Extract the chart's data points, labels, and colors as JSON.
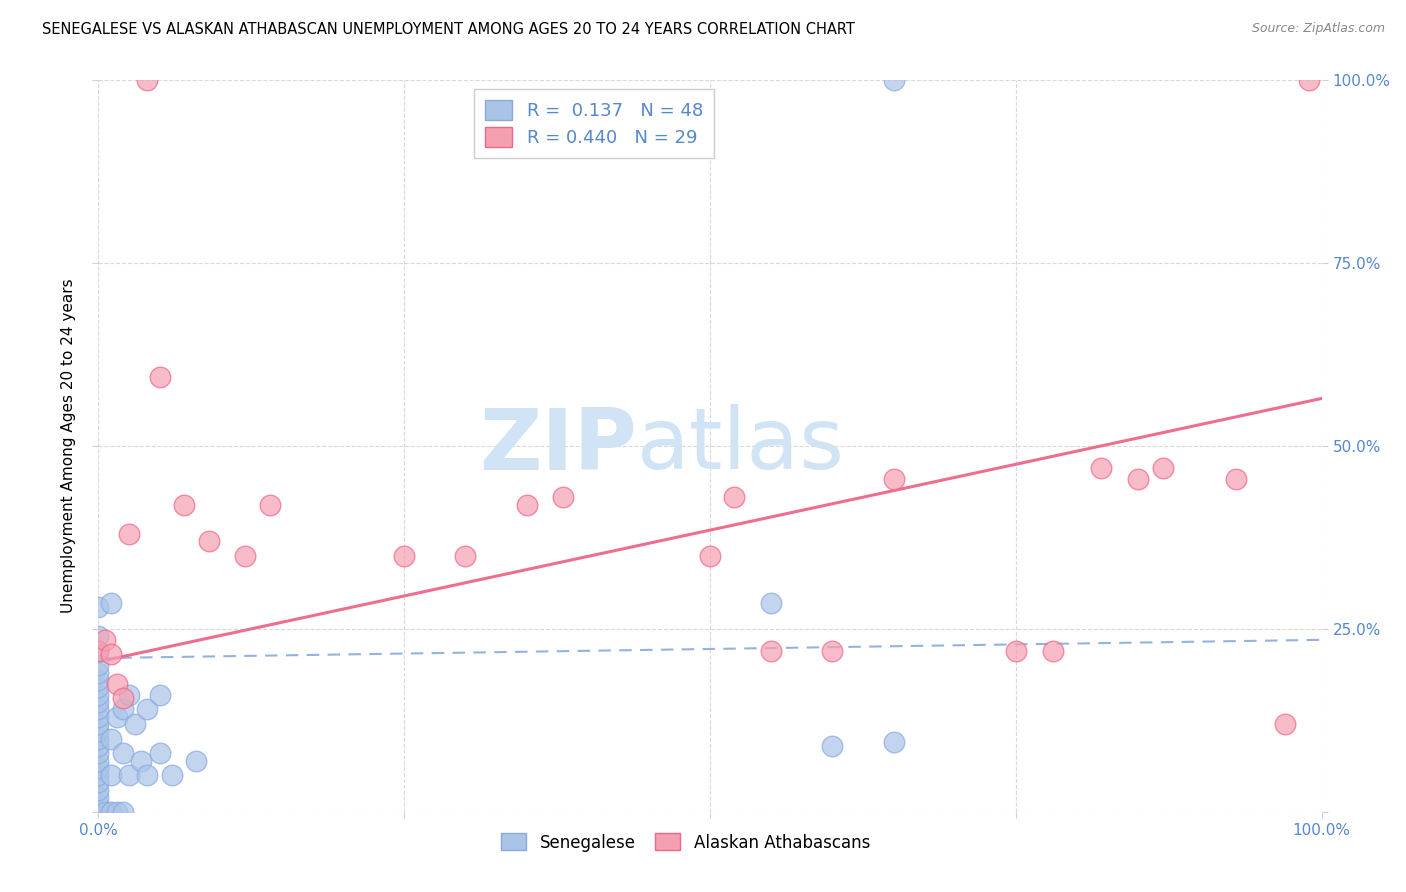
{
  "title": "SENEGALESE VS ALASKAN ATHABASCAN UNEMPLOYMENT AMONG AGES 20 TO 24 YEARS CORRELATION CHART",
  "source": "Source: ZipAtlas.com",
  "ylabel": "Unemployment Among Ages 20 to 24 years",
  "xlim": [
    0,
    1
  ],
  "ylim": [
    0,
    1
  ],
  "xticks": [
    0.0,
    0.25,
    0.5,
    0.75,
    1.0
  ],
  "yticks": [
    0.0,
    0.25,
    0.5,
    0.75,
    1.0
  ],
  "xticklabels_left": [
    "0.0%",
    "",
    "",
    "",
    "100.0%"
  ],
  "yticklabels_right": [
    "",
    "25.0%",
    "50.0%",
    "75.0%",
    "100.0%"
  ],
  "legend_labels": [
    "Senegalese",
    "Alaskan Athabascans"
  ],
  "senegalese_color": "#aac4e8",
  "athabascan_color": "#f5a0b0",
  "senegalese_R": 0.137,
  "senegalese_N": 48,
  "athabascan_R": 0.44,
  "athabascan_N": 29,
  "watermark_zip": "ZIP",
  "watermark_atlas": "atlas",
  "background_color": "#ffffff",
  "grid_color": "#d0d0d0",
  "title_fontsize": 10.5,
  "axis_label_fontsize": 11,
  "tick_fontsize": 11,
  "tick_color": "#5588cc",
  "senegalese_line_color": "#88aadd",
  "athabascan_line_color": "#ee6688",
  "senegalese_scatter": [
    [
      0.0,
      0.0
    ],
    [
      0.0,
      0.01
    ],
    [
      0.0,
      0.02
    ],
    [
      0.0,
      0.03
    ],
    [
      0.0,
      0.04
    ],
    [
      0.0,
      0.05
    ],
    [
      0.0,
      0.06
    ],
    [
      0.0,
      0.07
    ],
    [
      0.0,
      0.08
    ],
    [
      0.0,
      0.09
    ],
    [
      0.0,
      0.1
    ],
    [
      0.0,
      0.11
    ],
    [
      0.0,
      0.12
    ],
    [
      0.0,
      0.13
    ],
    [
      0.0,
      0.14
    ],
    [
      0.0,
      0.15
    ],
    [
      0.0,
      0.16
    ],
    [
      0.0,
      0.17
    ],
    [
      0.0,
      0.18
    ],
    [
      0.0,
      0.19
    ],
    [
      0.0,
      0.2
    ],
    [
      0.0,
      0.22
    ],
    [
      0.0,
      0.24
    ],
    [
      0.0,
      0.28
    ],
    [
      0.005,
      0.0
    ],
    [
      0.01,
      0.0
    ],
    [
      0.015,
      0.0
    ],
    [
      0.02,
      0.0
    ],
    [
      0.01,
      0.05
    ],
    [
      0.01,
      0.1
    ],
    [
      0.015,
      0.13
    ],
    [
      0.02,
      0.08
    ],
    [
      0.02,
      0.14
    ],
    [
      0.025,
      0.05
    ],
    [
      0.025,
      0.16
    ],
    [
      0.03,
      0.12
    ],
    [
      0.035,
      0.07
    ],
    [
      0.04,
      0.05
    ],
    [
      0.04,
      0.14
    ],
    [
      0.05,
      0.08
    ],
    [
      0.05,
      0.16
    ],
    [
      0.06,
      0.05
    ],
    [
      0.08,
      0.07
    ],
    [
      0.01,
      0.285
    ],
    [
      0.55,
      0.285
    ],
    [
      0.6,
      0.09
    ],
    [
      0.65,
      1.0
    ],
    [
      0.65,
      0.095
    ]
  ],
  "athabascan_scatter": [
    [
      0.0,
      0.22
    ],
    [
      0.005,
      0.235
    ],
    [
      0.01,
      0.215
    ],
    [
      0.015,
      0.175
    ],
    [
      0.02,
      0.155
    ],
    [
      0.025,
      0.38
    ],
    [
      0.04,
      1.0
    ],
    [
      0.05,
      0.595
    ],
    [
      0.07,
      0.42
    ],
    [
      0.09,
      0.37
    ],
    [
      0.12,
      0.35
    ],
    [
      0.14,
      0.42
    ],
    [
      0.25,
      0.35
    ],
    [
      0.3,
      0.35
    ],
    [
      0.35,
      0.42
    ],
    [
      0.38,
      0.43
    ],
    [
      0.5,
      0.35
    ],
    [
      0.52,
      0.43
    ],
    [
      0.55,
      0.22
    ],
    [
      0.6,
      0.22
    ],
    [
      0.65,
      0.455
    ],
    [
      0.75,
      0.22
    ],
    [
      0.78,
      0.22
    ],
    [
      0.82,
      0.47
    ],
    [
      0.85,
      0.455
    ],
    [
      0.87,
      0.47
    ],
    [
      0.93,
      0.455
    ],
    [
      0.97,
      0.12
    ],
    [
      0.99,
      1.0
    ]
  ],
  "sen_trend": [
    0.0,
    0.21,
    1.0,
    0.235
  ],
  "ath_trend": [
    0.0,
    0.205,
    1.0,
    0.565
  ]
}
